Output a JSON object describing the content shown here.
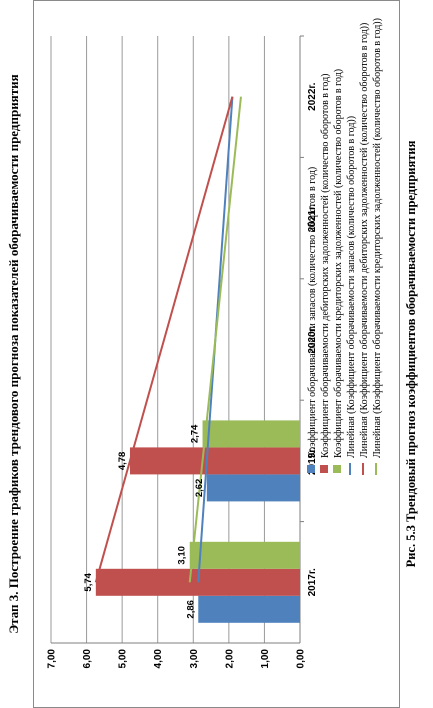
{
  "page": {
    "title": "Этап 3. Построение графиков трендового прогноза показателей оборачиваемости предприятия",
    "caption": "Рис. 5.3 Трендовый прогноз коэффициентов оборачиваемости предприятия"
  },
  "chart_data": {
    "type": "bar",
    "categories": [
      "2017г.",
      "2019г.",
      "2020г.",
      "2021г.",
      "2022г."
    ],
    "ylim": [
      0,
      7
    ],
    "yticks": [
      "0,00",
      "1,00",
      "2,00",
      "3,00",
      "4,00",
      "5,00",
      "6,00",
      "7,00"
    ],
    "gridlines": true,
    "legend_position": "bottom",
    "series": [
      {
        "name": "Коэффициент  оборачиваемости запасов (количество оборотов в год)",
        "color": "#4f81bd",
        "values": [
          2.86,
          2.62,
          null,
          null,
          null
        ],
        "labels": [
          "2,86",
          "2,62",
          "",
          "",
          ""
        ]
      },
      {
        "name": "Коэффициент оборачиваемости дебиторских задолженностей (количество оборотов в год)",
        "color": "#c0504d",
        "values": [
          5.74,
          4.78,
          null,
          null,
          null
        ],
        "labels": [
          "5,74",
          "4,78",
          "",
          "",
          ""
        ]
      },
      {
        "name": "Коэффициент оборачиваемости кредиторских задолженностей (количество оборотов в год)",
        "color": "#9bbb59",
        "values": [
          3.1,
          2.74,
          null,
          null,
          null
        ],
        "labels": [
          "3,10",
          "2,74",
          "",
          "",
          ""
        ]
      }
    ],
    "trendlines": [
      {
        "name": "Линейная (Коэффициент  оборачиваемости запасов (количество оборотов в год))",
        "color": "#4f81bd",
        "start": 2.86,
        "end": 1.9
      },
      {
        "name": "Линейная (Коэффициент оборачиваемости дебиторских задолженностей (количество оборотов в год))",
        "color": "#c0504d",
        "start": 5.74,
        "end": 1.9
      },
      {
        "name": "Линейная (Коэффициент оборачиваемости кредиторских задолженностей (количество оборотов в год))",
        "color": "#9bbb59",
        "start": 3.1,
        "end": 1.66
      }
    ]
  }
}
